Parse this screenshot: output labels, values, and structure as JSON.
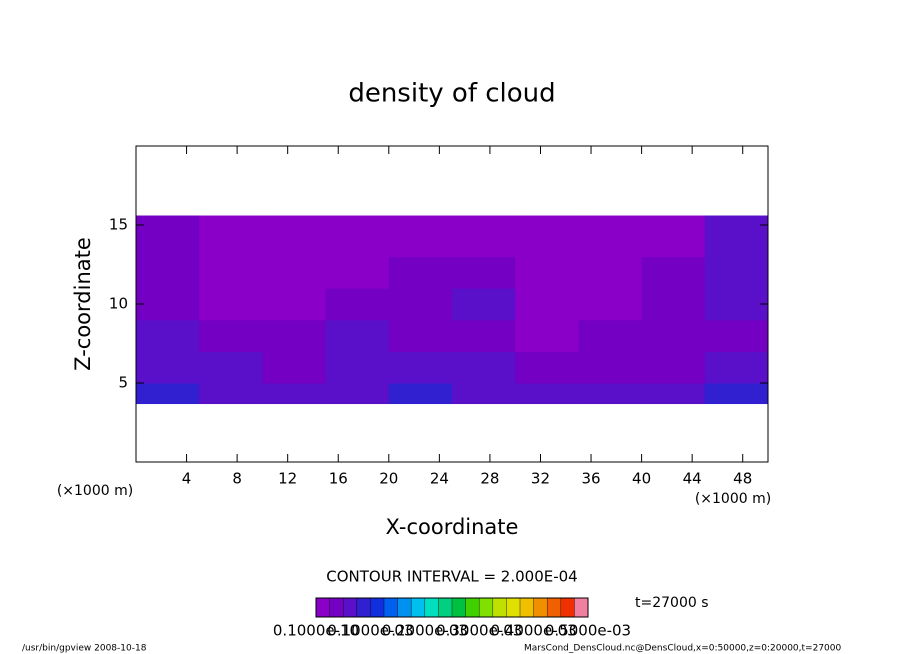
{
  "chart_data": {
    "type": "contour",
    "title": "density of cloud",
    "xlabel": "X-coordinate",
    "ylabel": "Z-coordinate",
    "xunit_left": "(×1000 m)",
    "xunit_right": "(×1000 m)",
    "contour_interval": "CONTOUR INTERVAL = 2.000E-04",
    "time_label": "t=27000 s",
    "footer_left": "/usr/bin/gpview  2008-10-18",
    "footer_right": "MarsCond_DensCloud.nc@DensCloud,x=0:50000,z=0:20000,t=27000",
    "xlim": [
      0,
      50
    ],
    "ylim": [
      0,
      20
    ],
    "xticks": [
      4,
      8,
      12,
      16,
      20,
      24,
      28,
      32,
      36,
      40,
      44,
      48
    ],
    "yticks": [
      5,
      10,
      15
    ],
    "x_edges": [
      0,
      5,
      10,
      15,
      20,
      25,
      30,
      35,
      40,
      45,
      50
    ],
    "z_edges": [
      3.7,
      5,
      7,
      9,
      11,
      13,
      15.6
    ],
    "field": [
      [
        8e-05,
        6e-05,
        5e-05,
        7e-05,
        8e-05,
        6e-05,
        5e-05,
        5e-05,
        7e-05,
        8e-05
      ],
      [
        7e-05,
        6e-05,
        4e-05,
        6e-05,
        7e-05,
        5e-05,
        3e-05,
        4e-05,
        3e-05,
        6e-05
      ],
      [
        5e-05,
        3e-05,
        3e-05,
        6e-05,
        4e-05,
        3e-05,
        2e-05,
        4e-05,
        3e-05,
        4e-05
      ],
      [
        4e-05,
        2e-05,
        2e-05,
        3e-05,
        4e-05,
        6e-05,
        2e-05,
        2e-05,
        3e-05,
        5e-05
      ],
      [
        3e-05,
        1e-05,
        1e-05,
        2e-05,
        3e-05,
        3e-05,
        1e-05,
        1e-05,
        3e-05,
        5e-05
      ],
      [
        4e-05,
        1e-05,
        1e-05,
        1e-05,
        2e-05,
        2e-05,
        1e-05,
        1e-05,
        2e-05,
        6e-05
      ]
    ],
    "clim": [
      0,
      0.0005
    ],
    "cticks": [
      {
        "value": 1e-11,
        "label": "0.1000e-10"
      },
      {
        "value": 0.0001,
        "label": "0.1000e-03"
      },
      {
        "value": 0.0002,
        "label": "0.2000e-03"
      },
      {
        "value": 0.0003,
        "label": "0.3000e-03"
      },
      {
        "value": 0.0004,
        "label": "0.4000e-03"
      },
      {
        "value": 0.0005,
        "label": "0.5000e-03"
      }
    ],
    "colormap": [
      "#8a00c8",
      "#7400c4",
      "#5a10c8",
      "#3020d0",
      "#1030e0",
      "#0060f0",
      "#0090f0",
      "#00c0f0",
      "#00e0c0",
      "#00d080",
      "#00c040",
      "#40d000",
      "#80e000",
      "#c0e000",
      "#e0e000",
      "#f0c000",
      "#f09000",
      "#f06000",
      "#f03000",
      "#f080a0"
    ]
  }
}
